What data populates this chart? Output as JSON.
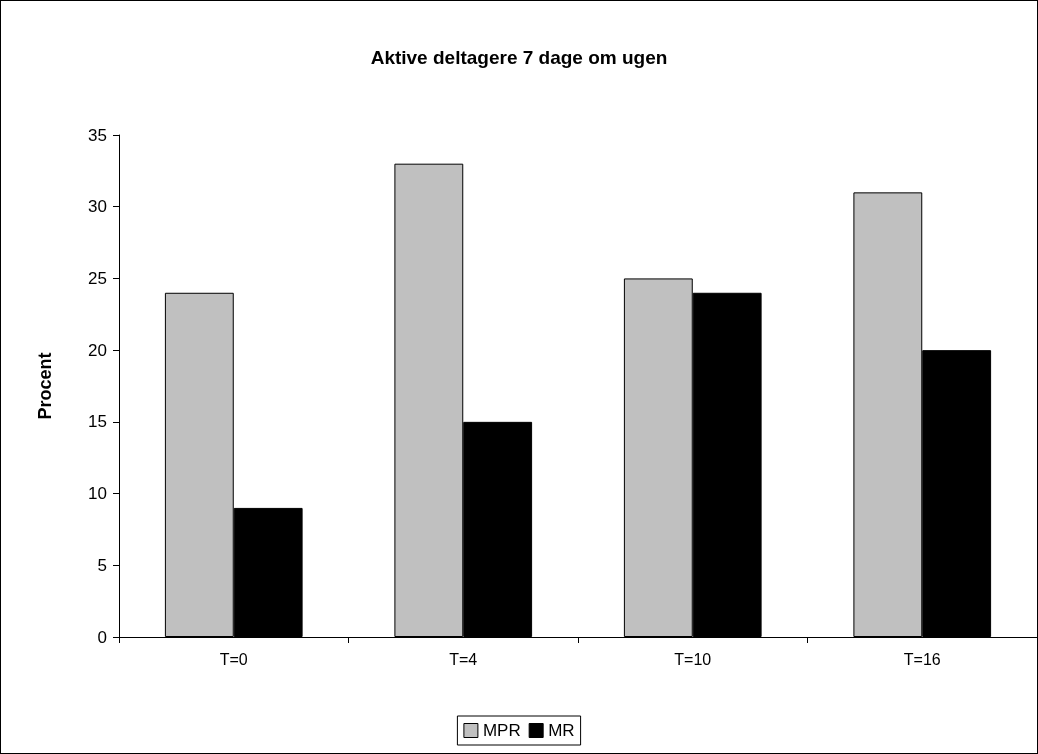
{
  "chart_data": {
    "type": "bar",
    "title": "Aktive deltagere 7 dage om ugen",
    "ylabel": "Procent",
    "categories": [
      "T=0",
      "T=4",
      "T=10",
      "T=16"
    ],
    "series": [
      {
        "name": "MPR",
        "color": "#c0c0c0",
        "values": [
          24,
          33,
          25,
          31
        ]
      },
      {
        "name": "MR",
        "color": "#000000",
        "values": [
          9,
          15,
          24,
          20
        ]
      }
    ],
    "ylim": [
      0,
      35
    ],
    "yticks": [
      0,
      5,
      10,
      15,
      20,
      25,
      30,
      35
    ],
    "grid": false,
    "legend": "bottom"
  }
}
